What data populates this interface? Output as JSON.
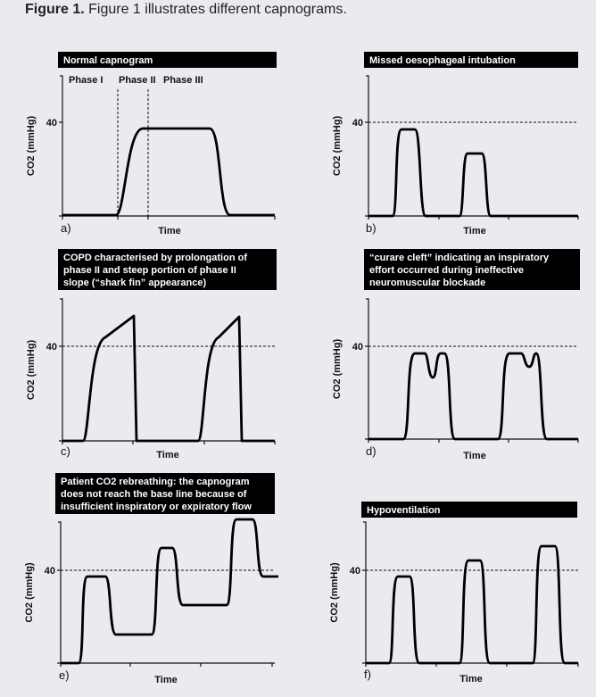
{
  "caption": {
    "label": "Figure 1.",
    "text": " Figure 1 illustrates different capnograms."
  },
  "y_axis_label": "CO2 (mmHg)",
  "y_tick": "40",
  "x_axis_label": "Time",
  "panels": [
    {
      "letter": "a)",
      "title": [
        "Normal capnogram"
      ],
      "phases": [
        "Phase I",
        "Phase II",
        "Phase III"
      ]
    },
    {
      "letter": "b)",
      "title": [
        "Missed oesophageal intubation"
      ]
    },
    {
      "letter": "c)",
      "title": [
        "COPD characterised by prolongation of",
        "phase II and steep portion of phase II",
        "slope (“shark fin” appearance)"
      ]
    },
    {
      "letter": "d)",
      "title": [
        "“curare cleft” indicating an inspiratory",
        "effort occurred during ineffective",
        "neuromuscular blockade"
      ]
    },
    {
      "letter": "e)",
      "title": [
        "Patient CO2 rebreathing: the capnogram",
        "does not reach the base line because of",
        "insufficient inspiratory or expiratory flow"
      ]
    },
    {
      "letter": "f)",
      "title": [
        "Hypoventilation"
      ]
    }
  ]
}
